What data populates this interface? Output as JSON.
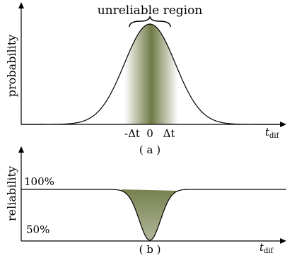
{
  "panel_a": {
    "y_axis_label": "probability",
    "bracket_label": "unreliable region",
    "tick_minus": "-Δt",
    "tick_zero": "0",
    "tick_plus": "Δt",
    "x_axis_label_main": "t",
    "x_axis_label_sub": "dif",
    "caption": "( a )"
  },
  "panel_b": {
    "y_axis_label": "reliability",
    "level_high": "100%",
    "level_low": "50%",
    "x_axis_label_main": "t",
    "x_axis_label_sub": "dif",
    "caption": "( b )"
  },
  "colors": {
    "shade": "#6f7a45",
    "line": "#000000"
  }
}
